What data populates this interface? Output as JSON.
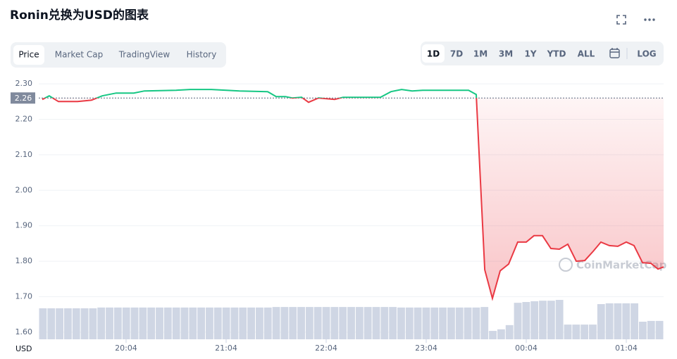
{
  "header": {
    "title": "Ronin兑换为USD的图表",
    "tabs": [
      "Price",
      "Market Cap",
      "TradingView",
      "History"
    ],
    "active_tab": "Price",
    "ranges": [
      "1D",
      "7D",
      "1M",
      "3M",
      "1Y",
      "YTD",
      "ALL"
    ],
    "active_range": "1D",
    "log_button": "LOG"
  },
  "chart_data": {
    "type": "line",
    "y_axis_label": "USD",
    "watermark": "CoinMarketCap",
    "current_price": 2.26,
    "x": [
      19.229,
      19.299,
      19.391,
      19.581,
      19.722,
      19.828,
      19.968,
      20.144,
      20.25,
      20.567,
      20.708,
      20.919,
      21.201,
      21.482,
      21.567,
      21.659,
      21.729,
      21.821,
      21.891,
      21.99,
      22.152,
      22.236,
      22.609,
      22.715,
      22.821,
      22.926,
      23.032,
      23.49,
      23.567,
      23.652,
      23.729,
      23.806,
      23.891,
      23.982,
      24.067,
      24.144,
      24.229,
      24.313,
      24.398,
      24.482,
      24.567,
      24.652,
      24.736,
      24.813,
      24.898,
      24.982,
      25.067,
      25.144,
      25.229,
      25.313,
      25.384,
      25.44
    ],
    "series": [
      {
        "name": "Price",
        "color_up": "#16c784",
        "color_down": "#ea3943",
        "values": [
          2.256,
          2.266,
          2.25,
          2.25,
          2.254,
          2.266,
          2.274,
          2.274,
          2.28,
          2.282,
          2.284,
          2.284,
          2.28,
          2.278,
          2.264,
          2.264,
          2.26,
          2.262,
          2.248,
          2.26,
          2.256,
          2.262,
          2.262,
          2.278,
          2.284,
          2.28,
          2.282,
          2.282,
          2.27,
          1.776,
          1.695,
          1.773,
          1.792,
          1.854,
          1.854,
          1.872,
          1.872,
          1.836,
          1.834,
          1.848,
          1.8,
          1.802,
          1.828,
          1.854,
          1.844,
          1.842,
          1.854,
          1.844,
          1.796,
          1.794,
          1.778,
          1.784
        ]
      }
    ],
    "xlim": [
      19.194,
      25.44
    ],
    "xticks": [
      {
        "value": 20.067,
        "label": "20:04"
      },
      {
        "value": 21.067,
        "label": "21:04"
      },
      {
        "value": 22.067,
        "label": "22:04"
      },
      {
        "value": 23.067,
        "label": "23:04"
      },
      {
        "value": 24.067,
        "label": "00:04"
      },
      {
        "value": 25.067,
        "label": "01:04"
      }
    ],
    "ylim": [
      1.58,
      2.32
    ],
    "yticks": [
      {
        "value": 1.6,
        "label": "1.60"
      },
      {
        "value": 1.7,
        "label": "1.70"
      },
      {
        "value": 1.8,
        "label": "1.80"
      },
      {
        "value": 1.9,
        "label": "1.90"
      },
      {
        "value": 2.0,
        "label": "2.00"
      },
      {
        "value": 2.1,
        "label": "2.10"
      },
      {
        "value": 2.2,
        "label": "2.20"
      },
      {
        "value": 2.3,
        "label": "2.30"
      }
    ],
    "grid": true,
    "volume": {
      "color": "#cfd6e4",
      "ylim": [
        0,
        100
      ],
      "values": [
        11.8,
        11.8,
        11.8,
        11.8,
        11.8,
        11.8,
        11.8,
        12.1,
        12.1,
        12.1,
        12.1,
        12.1,
        12.1,
        12.1,
        12.1,
        12.1,
        12.1,
        12.1,
        12.1,
        12.1,
        12.1,
        12.1,
        12.1,
        12.1,
        12.1,
        12.1,
        12.1,
        12.1,
        12.3,
        12.3,
        12.3,
        12.3,
        12.3,
        12.3,
        12.3,
        12.3,
        12.3,
        12.3,
        12.3,
        12.3,
        12.3,
        12.3,
        12.3,
        12.1,
        12.1,
        12.1,
        12.1,
        12.1,
        12.1,
        12.1,
        12.1,
        12.1,
        12.1,
        12.3,
        3.2,
        3.8,
        5.4,
        13.9,
        14.2,
        14.5,
        14.7,
        14.7,
        15.0,
        5.6,
        5.6,
        5.6,
        5.6,
        13.4,
        13.7,
        13.7,
        13.7,
        13.7,
        6.7,
        7.0,
        7.0
      ]
    }
  }
}
